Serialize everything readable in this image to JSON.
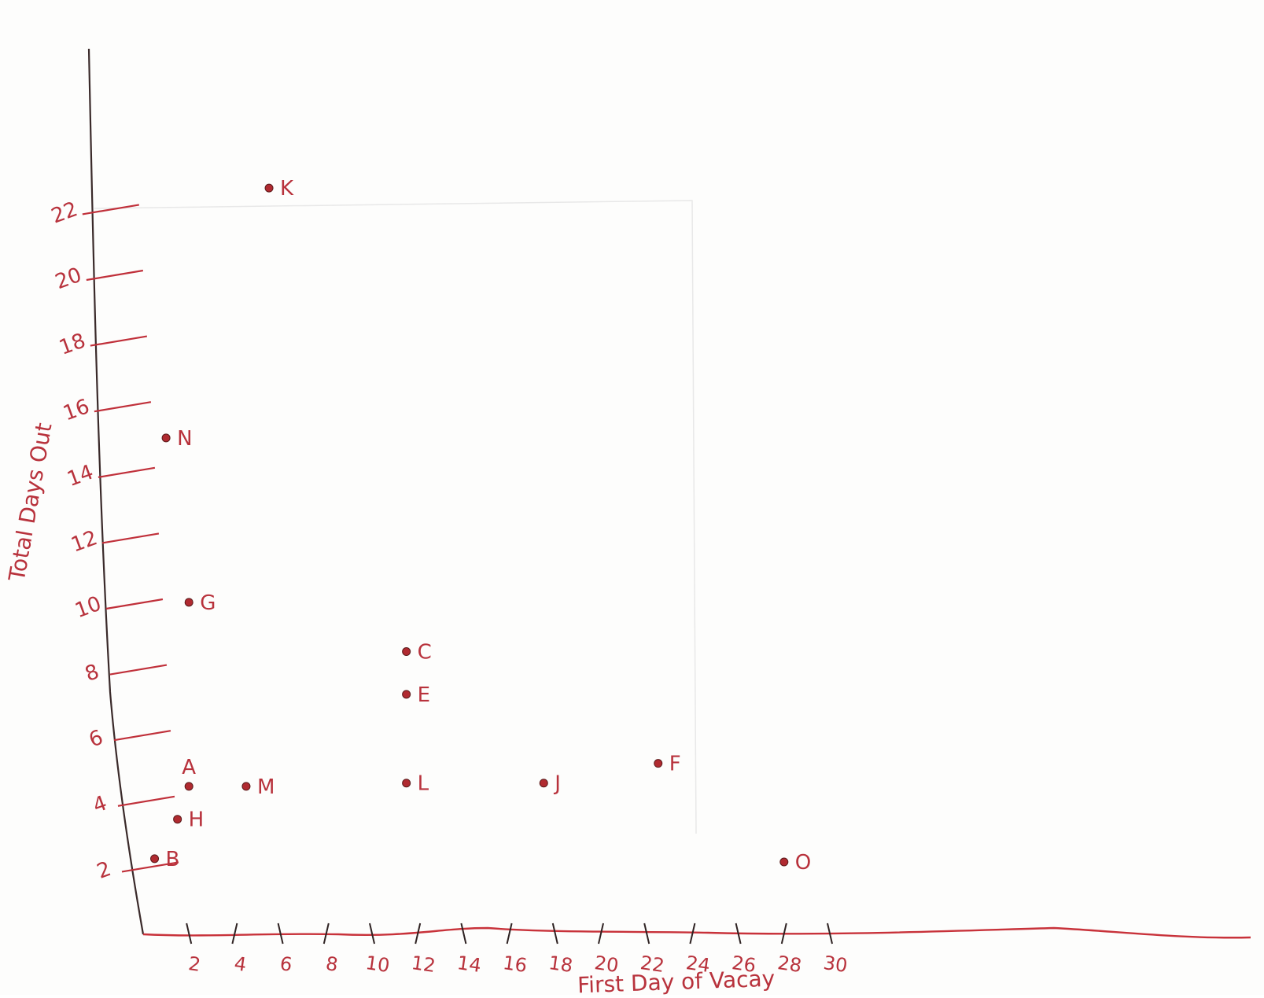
{
  "chart_data": {
    "type": "scatter",
    "xlabel": "First Day of Vacay",
    "ylabel": "Total Days Out",
    "xlim": [
      0,
      30
    ],
    "ylim": [
      0,
      24
    ],
    "x_ticks": [
      2,
      4,
      6,
      8,
      10,
      12,
      14,
      16,
      18,
      20,
      22,
      24,
      26,
      28,
      30
    ],
    "y_ticks": [
      2,
      4,
      6,
      8,
      10,
      12,
      14,
      16,
      18,
      20,
      22
    ],
    "grid": false,
    "legend": "none",
    "points": [
      {
        "label": "K",
        "x": 5.5,
        "y": 22.7
      },
      {
        "label": "N",
        "x": 1,
        "y": 15.1
      },
      {
        "label": "G",
        "x": 2,
        "y": 10.1
      },
      {
        "label": "C",
        "x": 11.5,
        "y": 8.6
      },
      {
        "label": "E",
        "x": 11.5,
        "y": 7.3
      },
      {
        "label": "F",
        "x": 22.5,
        "y": 5.2
      },
      {
        "label": "A",
        "x": 2,
        "y": 4.5
      },
      {
        "label": "M",
        "x": 4.5,
        "y": 4.5
      },
      {
        "label": "L",
        "x": 11.5,
        "y": 4.6
      },
      {
        "label": "J",
        "x": 17.5,
        "y": 4.6
      },
      {
        "label": "H",
        "x": 1.5,
        "y": 3.5
      },
      {
        "label": "B",
        "x": 0.5,
        "y": 2.3
      },
      {
        "label": "O",
        "x": 28,
        "y": 2.2
      }
    ],
    "colors": {
      "ink": "#b8323c",
      "axis": "#3a2a2a",
      "point": "#b02a30"
    }
  }
}
